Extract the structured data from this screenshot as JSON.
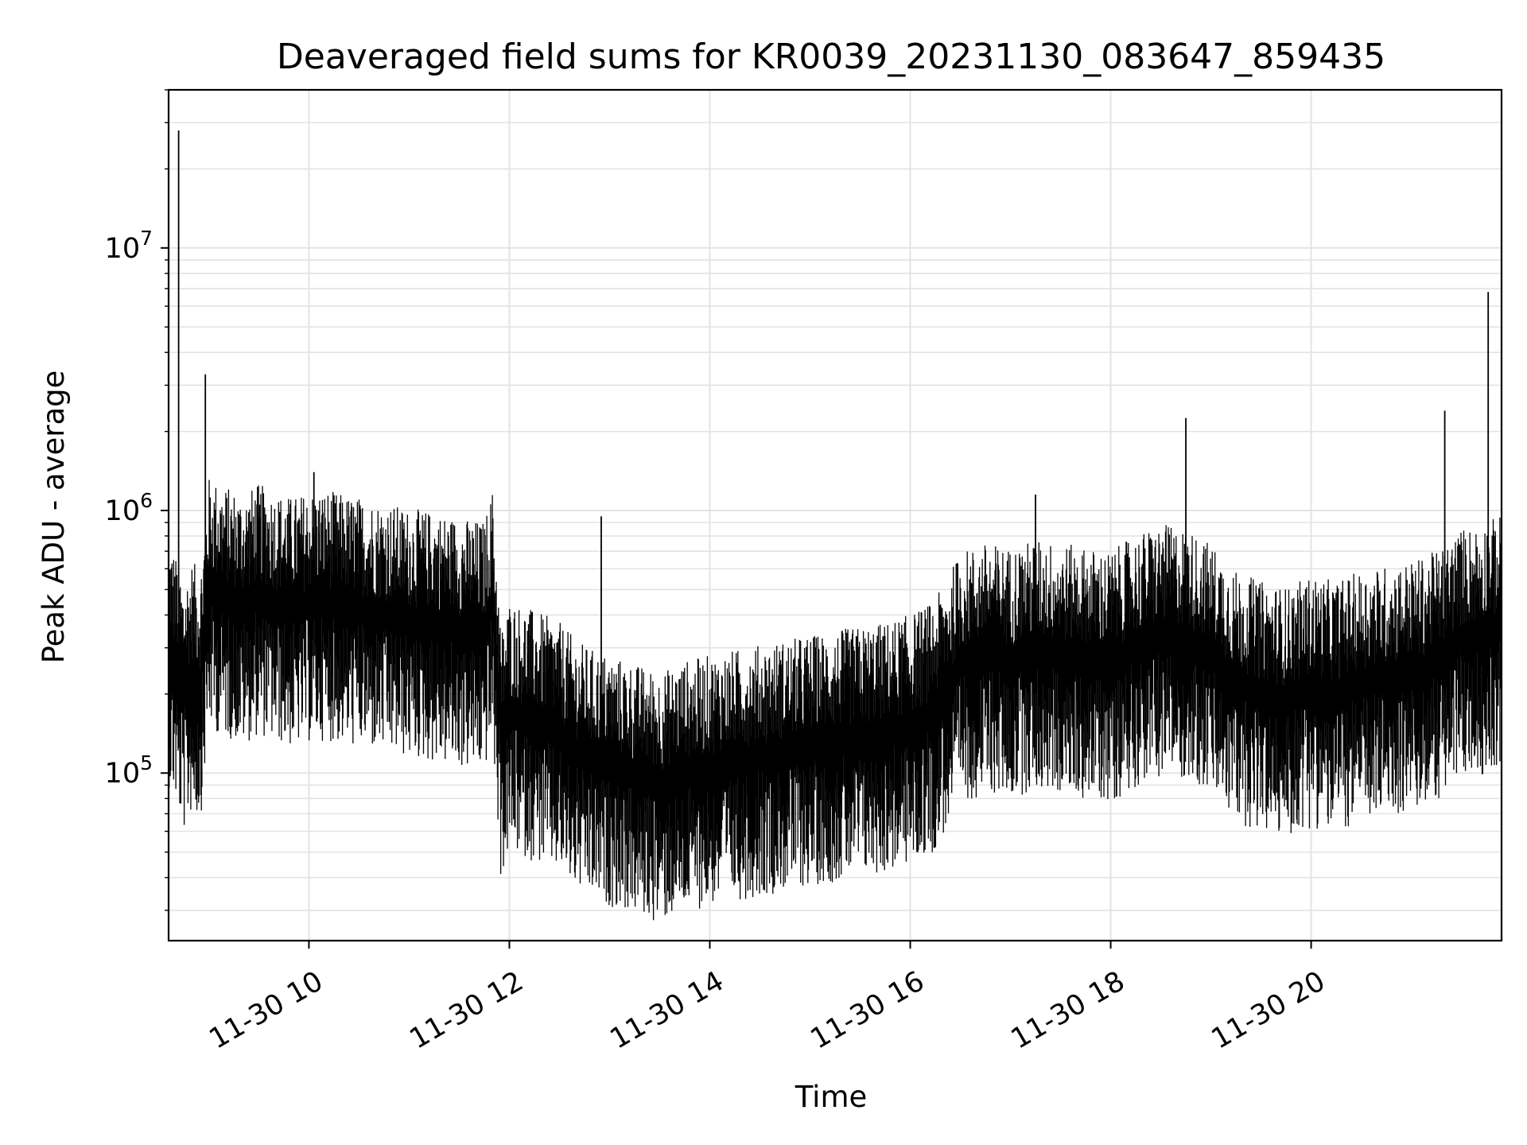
{
  "chart_data": {
    "type": "line",
    "title": "Deaveraged field sums for KR0039_20231130_083647_859435",
    "xlabel": "Time",
    "ylabel": "Peak ADU - average",
    "y_scale": "log",
    "ylim": [
      23000,
      40000000
    ],
    "xlim": [
      "2023-11-30 08:36",
      "2023-11-30 21:54"
    ],
    "grid": true,
    "x_tick_labels": [
      {
        "value": "2023-11-30 10:00",
        "label": "11-30 10"
      },
      {
        "value": "2023-11-30 12:00",
        "label": "11-30 12"
      },
      {
        "value": "2023-11-30 14:00",
        "label": "11-30 14"
      },
      {
        "value": "2023-11-30 16:00",
        "label": "11-30 16"
      },
      {
        "value": "2023-11-30 18:00",
        "label": "11-30 18"
      },
      {
        "value": "2023-11-30 20:00",
        "label": "11-30 20"
      }
    ],
    "y_tick_labels": [
      {
        "value": 100000,
        "base": "10",
        "exp": "5"
      },
      {
        "value": 1000000,
        "base": "10",
        "exp": "6"
      },
      {
        "value": 10000000,
        "base": "10",
        "exp": "7"
      }
    ],
    "series": [
      {
        "line_color": "#000000",
        "x": [
          "2023-11-30 08:36",
          "2023-11-30 08:40",
          "2023-11-30 08:45",
          "2023-11-30 08:50",
          "2023-11-30 08:55",
          "2023-11-30 09:00",
          "2023-11-30 09:05",
          "2023-11-30 09:10",
          "2023-11-30 09:15",
          "2023-11-30 09:20",
          "2023-11-30 09:30",
          "2023-11-30 09:40",
          "2023-11-30 09:50",
          "2023-11-30 10:00",
          "2023-11-30 10:10",
          "2023-11-30 10:20",
          "2023-11-30 10:30",
          "2023-11-30 10:45",
          "2023-11-30 11:00",
          "2023-11-30 11:15",
          "2023-11-30 11:30",
          "2023-11-30 11:45",
          "2023-11-30 11:50",
          "2023-11-30 11:55",
          "2023-11-30 12:00",
          "2023-11-30 12:10",
          "2023-11-30 12:20",
          "2023-11-30 12:30",
          "2023-11-30 12:40",
          "2023-11-30 12:50",
          "2023-11-30 13:00",
          "2023-11-30 13:10",
          "2023-11-30 13:20",
          "2023-11-30 13:30",
          "2023-11-30 13:45",
          "2023-11-30 14:00",
          "2023-11-30 14:15",
          "2023-11-30 14:30",
          "2023-11-30 14:45",
          "2023-11-30 15:00",
          "2023-11-30 15:15",
          "2023-11-30 15:30",
          "2023-11-30 15:45",
          "2023-11-30 16:00",
          "2023-11-30 16:15",
          "2023-11-30 16:30",
          "2023-11-30 16:45",
          "2023-11-30 17:00",
          "2023-11-30 17:15",
          "2023-11-30 17:30",
          "2023-11-30 17:45",
          "2023-11-30 18:00",
          "2023-11-30 18:15",
          "2023-11-30 18:30",
          "2023-11-30 18:45",
          "2023-11-30 19:00",
          "2023-11-30 19:15",
          "2023-11-30 19:30",
          "2023-11-30 19:45",
          "2023-11-30 20:00",
          "2023-11-30 20:15",
          "2023-11-30 20:30",
          "2023-11-30 20:45",
          "2023-11-30 21:00",
          "2023-11-30 21:10",
          "2023-11-30 21:20",
          "2023-11-30 21:30",
          "2023-11-30 21:40",
          "2023-11-30 21:45",
          "2023-11-30 21:50",
          "2023-11-30 21:54"
        ],
        "y": [
          300000,
          260000,
          200000,
          240000,
          220000,
          500000,
          480000,
          460000,
          450000,
          430000,
          470000,
          440000,
          420000,
          440000,
          450000,
          430000,
          420000,
          400000,
          380000,
          370000,
          350000,
          340000,
          450000,
          130000,
          170000,
          160000,
          150000,
          140000,
          120000,
          110000,
          105000,
          100000,
          95000,
          90000,
          100000,
          105000,
          110000,
          115000,
          120000,
          125000,
          130000,
          135000,
          140000,
          150000,
          170000,
          260000,
          280000,
          270000,
          290000,
          280000,
          270000,
          260000,
          300000,
          330000,
          320000,
          280000,
          220000,
          200000,
          190000,
          210000,
          200000,
          220000,
          230000,
          240000,
          250000,
          280000,
          320000,
          330000,
          340000,
          350000,
          360000
        ]
      }
    ],
    "annotations": [
      {
        "x": "2023-11-30 08:42",
        "y": 28000000,
        "note": "spike"
      },
      {
        "x": "2023-11-30 08:58",
        "y": 3300000,
        "note": "spike"
      },
      {
        "x": "2023-11-30 10:03",
        "y": 1400000,
        "note": "spike"
      },
      {
        "x": "2023-11-30 12:55",
        "y": 950000,
        "note": "spike"
      },
      {
        "x": "2023-11-30 17:15",
        "y": 1150000,
        "note": "spike"
      },
      {
        "x": "2023-11-30 18:45",
        "y": 2250000,
        "note": "spike"
      },
      {
        "x": "2023-11-30 21:20",
        "y": 2400000,
        "note": "spike"
      },
      {
        "x": "2023-11-30 21:46",
        "y": 6800000,
        "note": "spike"
      }
    ]
  }
}
